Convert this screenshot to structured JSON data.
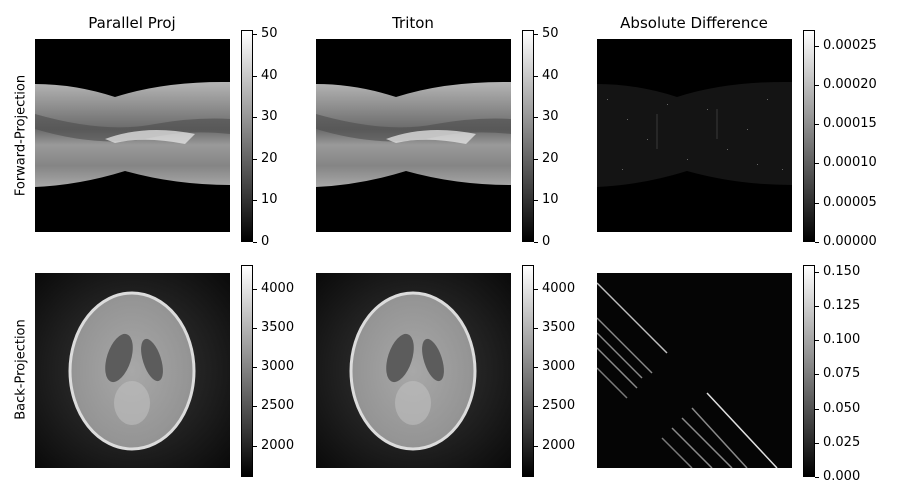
{
  "chart_data": [
    {
      "type": "heatmap",
      "title": "Parallel Proj",
      "row_label": "Forward-Projection",
      "colorbar": {
        "range": [
          0,
          51
        ],
        "ticks": [
          "0",
          "10",
          "20",
          "30",
          "40",
          "50"
        ],
        "colormap": "gray"
      }
    },
    {
      "type": "heatmap",
      "title": "Triton",
      "row_label": "Forward-Projection",
      "colorbar": {
        "range": [
          0,
          51
        ],
        "ticks": [
          "0",
          "10",
          "20",
          "30",
          "40",
          "50"
        ],
        "colormap": "gray"
      }
    },
    {
      "type": "heatmap",
      "title": "Absolute Difference",
      "row_label": "Forward-Projection",
      "colorbar": {
        "range": [
          0,
          0.00027
        ],
        "ticks": [
          "0.00000",
          "0.00005",
          "0.00010",
          "0.00015",
          "0.00020",
          "0.00025"
        ],
        "colormap": "gray"
      }
    },
    {
      "type": "heatmap",
      "title": "Parallel Proj",
      "row_label": "Back-Projection",
      "colorbar": {
        "range": [
          1600,
          4300
        ],
        "ticks": [
          "2000",
          "2500",
          "3000",
          "3500",
          "4000"
        ],
        "colormap": "gray"
      }
    },
    {
      "type": "heatmap",
      "title": "Triton",
      "row_label": "Back-Projection",
      "colorbar": {
        "range": [
          1600,
          4300
        ],
        "ticks": [
          "2000",
          "2500",
          "3000",
          "3500",
          "4000"
        ],
        "colormap": "gray"
      }
    },
    {
      "type": "heatmap",
      "title": "Absolute Difference",
      "row_label": "Back-Projection",
      "colorbar": {
        "range": [
          0,
          0.155
        ],
        "ticks": [
          "0.000",
          "0.025",
          "0.050",
          "0.075",
          "0.100",
          "0.125",
          "0.150"
        ],
        "colormap": "gray"
      }
    }
  ],
  "column_titles": [
    "Parallel Proj",
    "Triton",
    "Absolute Difference"
  ],
  "row_labels": [
    "Forward-Projection",
    "Back-Projection"
  ]
}
